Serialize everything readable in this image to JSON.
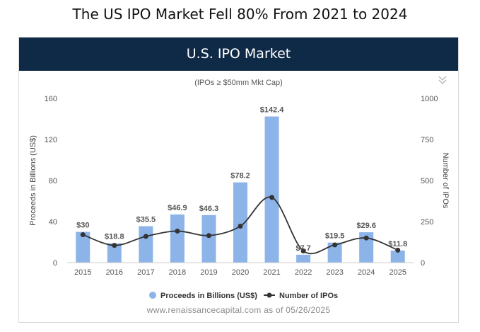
{
  "headline": "The US IPO Market Fell 80% From 2021 to 2024",
  "panel": {
    "banner_title": "U.S. IPO Market",
    "subtitle": "(IPOs ≥ $50mm Mkt Cap)",
    "watermark": "www.renaissancecapital.com as of 05/26/2025",
    "menu_icon": "double-chevron-down-icon"
  },
  "chart_data": {
    "type": "bar",
    "categories": [
      "2015",
      "2016",
      "2017",
      "2018",
      "2019",
      "2020",
      "2021",
      "2022",
      "2023",
      "2024",
      "2025"
    ],
    "series": [
      {
        "name": "Proceeds in Billions (US$)",
        "type": "bar",
        "axis": "left",
        "color": "#8db4e8",
        "values": [
          30,
          18.8,
          35.5,
          46.9,
          46.3,
          78.2,
          142.4,
          7.7,
          19.5,
          29.6,
          11.8
        ],
        "labels": [
          "$30",
          "$18.8",
          "$35.5",
          "$46.9",
          "$46.3",
          "$78.2",
          "$142.4",
          "$7.7",
          "$19.5",
          "$29.6",
          "$11.8"
        ]
      },
      {
        "name": "Number of IPOs",
        "type": "line",
        "axis": "right",
        "color": "#333333",
        "values": [
          170,
          105,
          160,
          192,
          165,
          222,
          397,
          71,
          108,
          150,
          76
        ]
      }
    ],
    "ylabel": "Proceeds in Billions (US$)",
    "y2label": "Number of IPOs",
    "ylim": [
      0,
      160
    ],
    "y2lim": [
      0,
      1000
    ],
    "yticks": [
      "0",
      "40",
      "80",
      "120",
      "160"
    ],
    "y2ticks": [
      "0",
      "250",
      "500",
      "750",
      "1000"
    ],
    "legend": "bottom",
    "grid": false
  }
}
